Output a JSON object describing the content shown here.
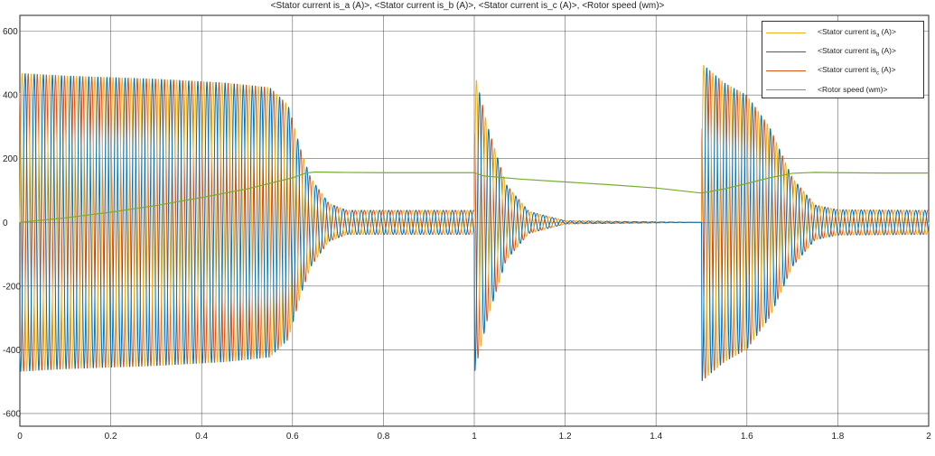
{
  "chart_data": {
    "type": "line",
    "title": "<Stator current is_a (A)>, <Stator current is_b (A)>, <Stator current is_c (A)>, <Rotor speed (wm)>",
    "xlabel": "",
    "ylabel": "",
    "xlim": [
      0,
      2
    ],
    "ylim": [
      -640,
      650
    ],
    "x_ticks": [
      0,
      0.2,
      0.4,
      0.6,
      0.8,
      1,
      1.2,
      1.4,
      1.6,
      1.8,
      2
    ],
    "y_ticks": [
      -600,
      -400,
      -200,
      0,
      200,
      400,
      600
    ],
    "grid": true,
    "legend_position": "top-right",
    "waveform": {
      "electrical_frequency_hz": 50,
      "envelope_breakpoints": [
        [
          0,
          470
        ],
        [
          0.1,
          462
        ],
        [
          0.3,
          452
        ],
        [
          0.45,
          440
        ],
        [
          0.55,
          425
        ],
        [
          0.59,
          370
        ],
        [
          0.62,
          220
        ],
        [
          0.64,
          140
        ],
        [
          0.68,
          60
        ],
        [
          0.72,
          38
        ],
        [
          1.0,
          38
        ],
        [
          1.001,
          470
        ],
        [
          1.03,
          300
        ],
        [
          1.07,
          120
        ],
        [
          1.12,
          35
        ],
        [
          1.2,
          5
        ],
        [
          1.5,
          0
        ],
        [
          1.501,
          500
        ],
        [
          1.55,
          440
        ],
        [
          1.6,
          400
        ],
        [
          1.65,
          300
        ],
        [
          1.7,
          140
        ],
        [
          1.75,
          55
        ],
        [
          1.8,
          40
        ],
        [
          2.0,
          38
        ]
      ]
    },
    "series": [
      {
        "name": "<Stator current isa (A)>",
        "legend_base": "<Stator current is",
        "legend_sub": "a",
        "legend_tail": " (A)>",
        "color": "#EDB120",
        "phase_deg": 0
      },
      {
        "name": "<Stator current isb (A)>",
        "legend_base": "<Stator current is",
        "legend_sub": "b",
        "legend_tail": " (A)>",
        "color": "#0072BD",
        "phase_deg": -120
      },
      {
        "name": "<Stator current isc (A)>",
        "legend_base": "<Stator current is",
        "legend_sub": "c",
        "legend_tail": " (A)>",
        "color": "#D95319",
        "phase_deg": 120
      },
      {
        "name": "<Rotor speed (wm)>",
        "legend_base": "<Rotor speed (wm)>",
        "legend_sub": "",
        "legend_tail": "",
        "color": "#77AC30",
        "x": [
          0,
          0.1,
          0.2,
          0.3,
          0.4,
          0.5,
          0.6,
          0.63,
          0.65,
          0.7,
          0.8,
          0.9,
          1.0,
          1.02,
          1.1,
          1.2,
          1.3,
          1.4,
          1.5,
          1.55,
          1.6,
          1.65,
          1.7,
          1.75,
          1.8,
          1.9,
          2.0
        ],
        "values": [
          0,
          14,
          32,
          53,
          78,
          105,
          140,
          155,
          158,
          157,
          156,
          156,
          156,
          146,
          136,
          127,
          118,
          108,
          92,
          105,
          122,
          140,
          154,
          157,
          156,
          155,
          155
        ]
      }
    ]
  }
}
